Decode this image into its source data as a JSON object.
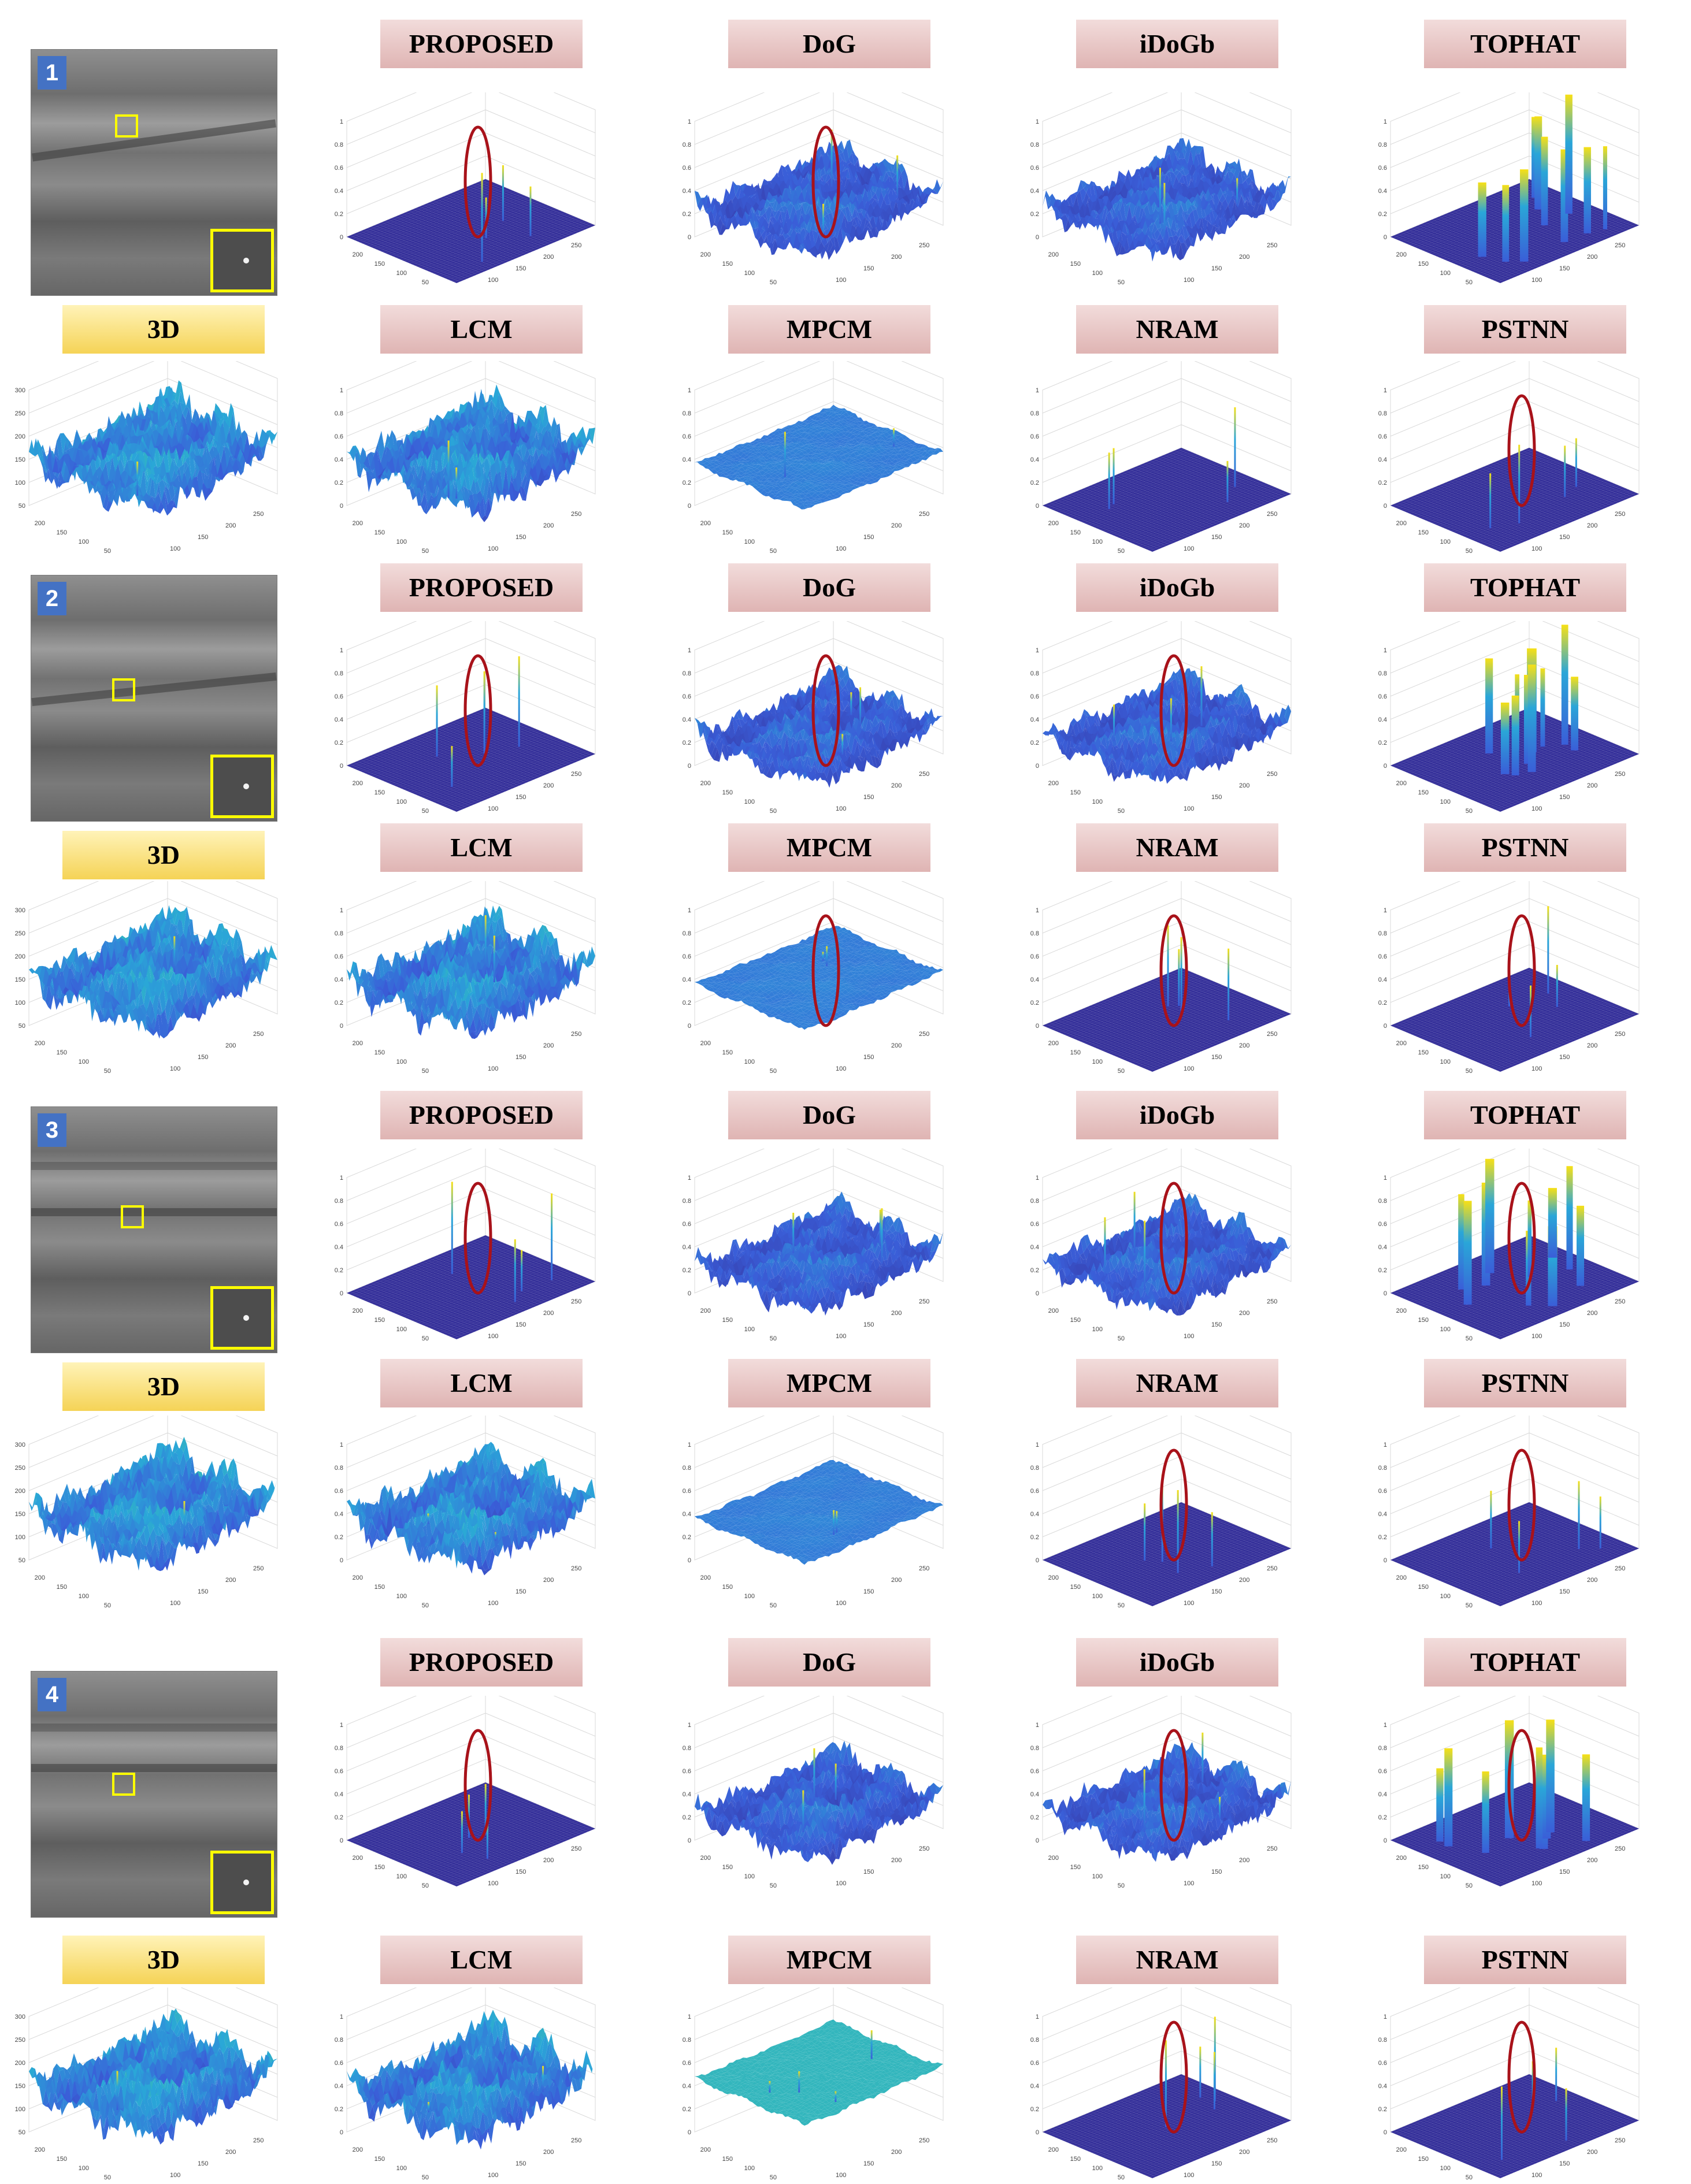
{
  "methods": [
    "PROPOSED",
    "DoG",
    "iDoGb",
    "TOPHAT",
    "3D",
    "LCM",
    "MPCM",
    "NRAM",
    "PSTNN"
  ],
  "colors": {
    "base": "#35309a",
    "low": "#3a5ed8",
    "mid": "#2aa6d8",
    "high": "#3dc7a0",
    "peak": "#f7e016",
    "grid": "#d9d9d9",
    "axis": "#444444",
    "highlight": "#a8121a",
    "badge": "#4472c4",
    "roi": "#ffff00"
  },
  "axis_ticks": {
    "z_unit": [
      "0",
      "0.2",
      "0.4",
      "0.6",
      "0.8",
      "1"
    ],
    "z_raw": [
      "50",
      "100",
      "150",
      "200",
      "250",
      "300"
    ],
    "x": [
      "50",
      "100",
      "150",
      "200",
      "250"
    ],
    "y": [
      "50",
      "100",
      "150",
      "200",
      "250"
    ]
  },
  "groups": [
    {
      "badge": "1",
      "row1": [
        "PROPOSED",
        "DoG",
        "iDoGb",
        "TOPHAT"
      ],
      "row2": [
        "3D",
        "LCM",
        "MPCM",
        "NRAM",
        "PSTNN"
      ]
    },
    {
      "badge": "2",
      "row1": [
        "PROPOSED",
        "DoG",
        "iDoGb",
        "TOPHAT"
      ],
      "row2": [
        "3D",
        "LCM",
        "MPCM",
        "NRAM",
        "PSTNN"
      ]
    },
    {
      "badge": "3",
      "row1": [
        "PROPOSED",
        "DoG",
        "iDoGb",
        "TOPHAT"
      ],
      "row2": [
        "3D",
        "LCM",
        "MPCM",
        "NRAM",
        "PSTNN"
      ]
    },
    {
      "badge": "4",
      "row1": [
        "PROPOSED",
        "DoG",
        "iDoGb",
        "TOPHAT"
      ],
      "row2": [
        "3D",
        "LCM",
        "MPCM",
        "NRAM",
        "PSTNN"
      ]
    }
  ]
}
